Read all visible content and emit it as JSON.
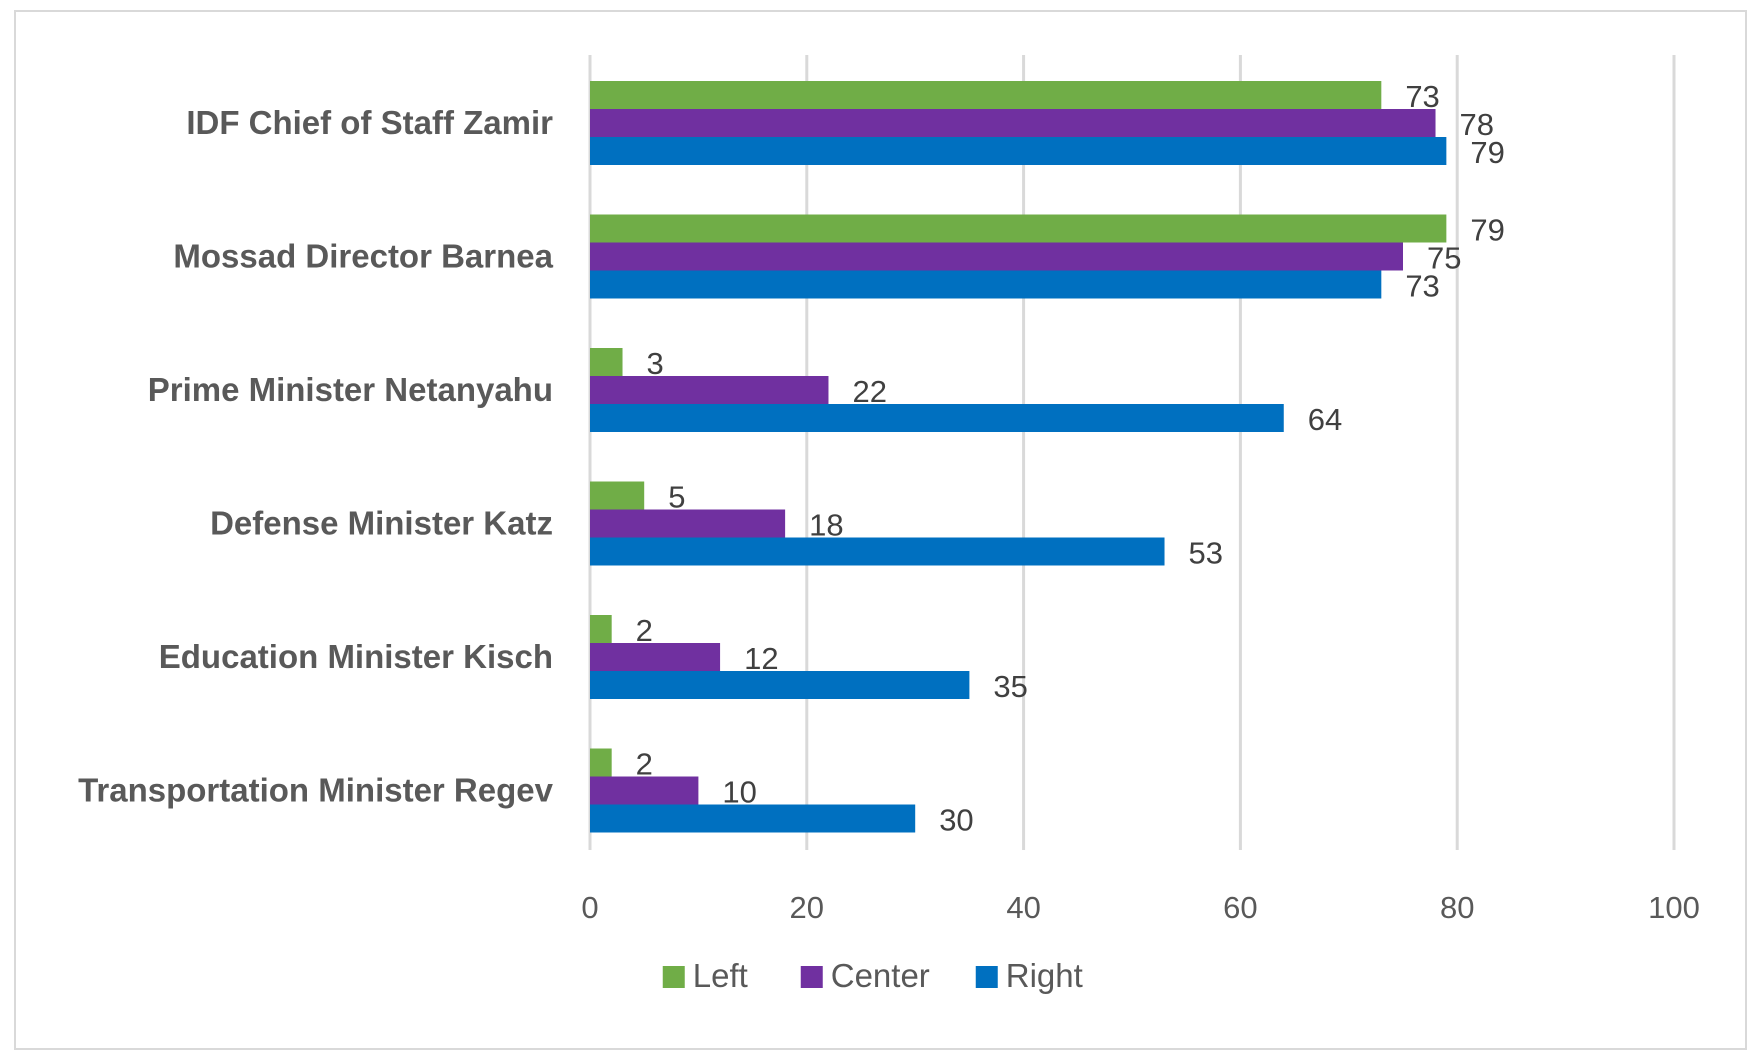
{
  "chart_data": {
    "type": "bar",
    "orientation": "horizontal",
    "categories": [
      "IDF Chief of Staff Zamir",
      "Mossad Director Barnea",
      "Prime Minister Netanyahu",
      "Defense Minister Katz",
      "Education Minister Kisch",
      "Transportation Minister Regev"
    ],
    "series": [
      {
        "name": "Left",
        "color": "#70ad47",
        "values": [
          73,
          79,
          3,
          5,
          2,
          2
        ]
      },
      {
        "name": "Center",
        "color": "#7030a0",
        "values": [
          78,
          75,
          22,
          18,
          12,
          10
        ]
      },
      {
        "name": "Right",
        "color": "#0070c0",
        "values": [
          79,
          73,
          64,
          53,
          35,
          30
        ]
      }
    ],
    "xlim": [
      0,
      100
    ],
    "xticks": [
      0,
      20,
      40,
      60,
      80,
      100
    ],
    "grid": true,
    "legend_position": "bottom",
    "data_labels": true
  }
}
